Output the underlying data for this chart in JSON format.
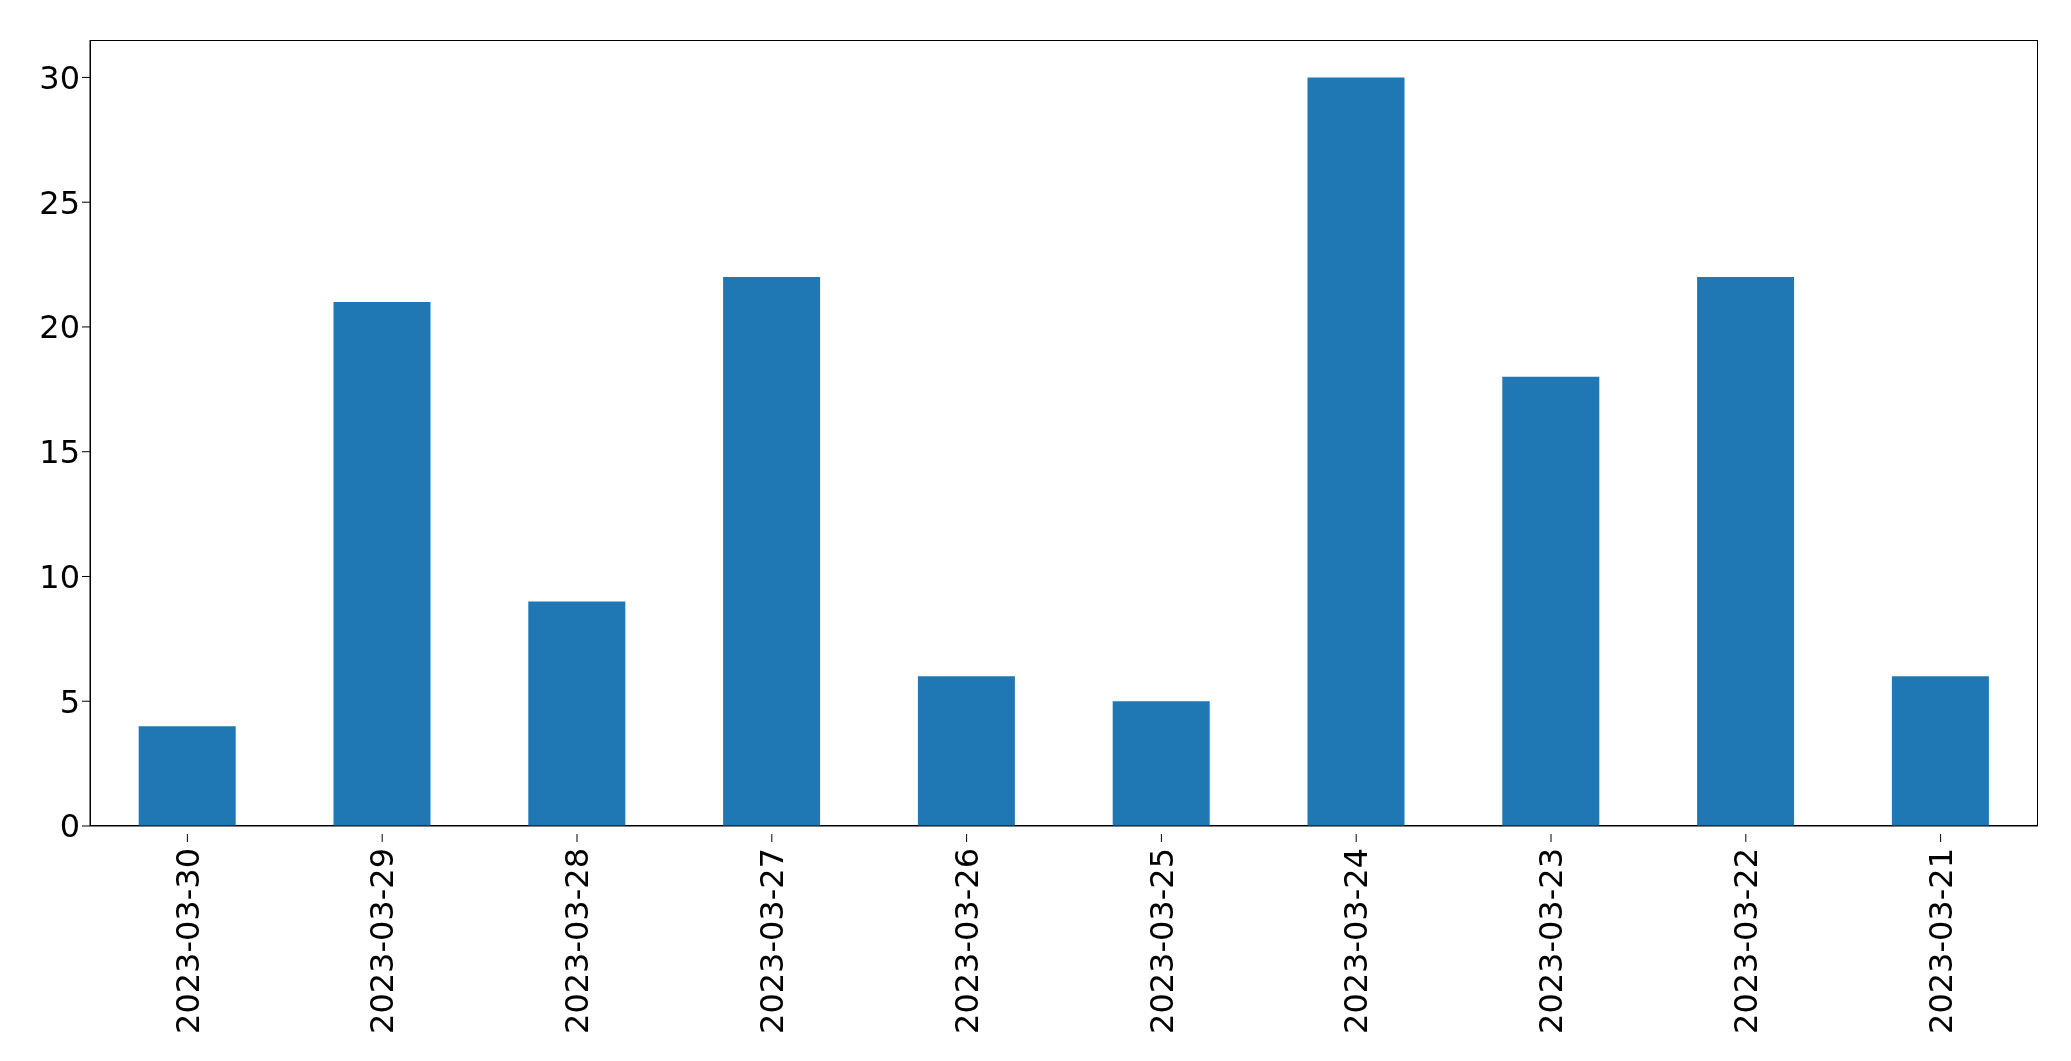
{
  "chart_data": {
    "type": "bar",
    "categories": [
      "2023-03-30",
      "2023-03-29",
      "2023-03-28",
      "2023-03-27",
      "2023-03-26",
      "2023-03-25",
      "2023-03-24",
      "2023-03-23",
      "2023-03-22",
      "2023-03-21"
    ],
    "values": [
      4,
      21,
      9,
      22,
      6,
      5,
      30,
      18,
      22,
      6
    ],
    "color": "#1f77b4",
    "ylim": [
      0,
      31.5
    ],
    "yticks": [
      0,
      5,
      10,
      15,
      20,
      25,
      30
    ],
    "grid": false
  }
}
